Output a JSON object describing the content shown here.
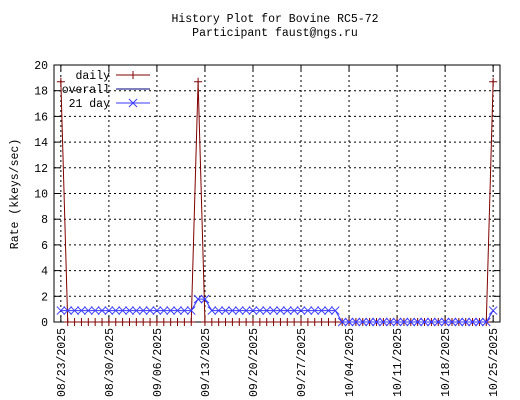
{
  "chart_data": {
    "type": "line",
    "title": "History Plot for Bovine RC5-72",
    "subtitle": "Participant faust@ngs.ru",
    "y_label": "Rate (kkeys/sec)",
    "x": [
      "08/23/2025",
      "08/24/2025",
      "08/25/2025",
      "08/26/2025",
      "08/27/2025",
      "08/28/2025",
      "08/29/2025",
      "08/30/2025",
      "08/31/2025",
      "09/01/2025",
      "09/02/2025",
      "09/03/2025",
      "09/04/2025",
      "09/05/2025",
      "09/06/2025",
      "09/07/2025",
      "09/08/2025",
      "09/09/2025",
      "09/10/2025",
      "09/11/2025",
      "09/12/2025",
      "09/13/2025",
      "09/14/2025",
      "09/15/2025",
      "09/16/2025",
      "09/17/2025",
      "09/18/2025",
      "09/19/2025",
      "09/20/2025",
      "09/21/2025",
      "09/22/2025",
      "09/23/2025",
      "09/24/2025",
      "09/25/2025",
      "09/26/2025",
      "09/27/2025",
      "09/28/2025",
      "09/29/2025",
      "09/30/2025",
      "10/01/2025",
      "10/02/2025",
      "10/03/2025",
      "10/04/2025",
      "10/05/2025",
      "10/06/2025",
      "10/07/2025",
      "10/08/2025",
      "10/09/2025",
      "10/10/2025",
      "10/11/2025",
      "10/12/2025",
      "10/13/2025",
      "10/14/2025",
      "10/15/2025",
      "10/16/2025",
      "10/17/2025",
      "10/18/2025",
      "10/19/2025",
      "10/20/2025",
      "10/21/2025",
      "10/22/2025",
      "10/23/2025",
      "10/24/2025",
      "10/25/2025"
    ],
    "series": [
      {
        "name": "daily",
        "color": "#800000",
        "marker": "plus",
        "values": [
          18.7,
          0,
          0,
          0,
          0,
          0,
          0,
          0,
          0,
          0,
          0,
          0,
          0,
          0,
          0,
          0,
          0,
          0,
          0,
          0,
          18.7,
          0,
          0,
          0,
          0,
          0,
          0,
          0,
          0,
          0,
          0,
          0,
          0,
          0,
          0,
          0,
          0,
          0,
          0,
          0,
          0,
          0,
          0,
          0,
          0,
          0,
          0,
          0,
          0,
          0,
          0,
          0,
          0,
          0,
          0,
          0,
          0,
          0,
          0,
          0,
          0,
          0,
          0,
          18.7
        ]
      },
      {
        "name": "overall",
        "color": "#00007f",
        "marker": "none",
        "values": [
          null,
          null,
          null,
          null,
          null,
          null,
          null,
          null,
          null,
          null,
          null,
          null,
          null,
          null,
          null,
          null,
          null,
          null,
          null,
          null,
          null,
          null,
          null,
          null,
          null,
          null,
          null,
          null,
          null,
          null,
          null,
          null,
          null,
          null,
          null,
          null,
          null,
          null,
          null,
          null,
          null,
          null,
          null,
          null,
          null,
          null,
          null,
          null,
          null,
          null,
          null,
          null,
          null,
          null,
          null,
          null,
          null,
          null,
          null,
          null,
          null,
          null,
          null,
          null
        ]
      },
      {
        "name": "21 day",
        "color": "#3a3aff",
        "marker": "cross",
        "values": [
          0.89,
          0.89,
          0.89,
          0.89,
          0.89,
          0.89,
          0.89,
          0.89,
          0.89,
          0.89,
          0.89,
          0.89,
          0.89,
          0.89,
          0.89,
          0.89,
          0.89,
          0.89,
          0.89,
          0.89,
          1.78,
          1.78,
          0.89,
          0.89,
          0.89,
          0.89,
          0.89,
          0.89,
          0.89,
          0.89,
          0.89,
          0.89,
          0.89,
          0.89,
          0.89,
          0.89,
          0.89,
          0.89,
          0.89,
          0.89,
          0.89,
          0,
          0,
          0,
          0,
          0,
          0,
          0,
          0,
          0,
          0,
          0,
          0,
          0,
          0,
          0,
          0,
          0,
          0,
          0,
          0,
          0,
          0,
          0.89
        ]
      }
    ],
    "xlim": [
      "08/22/2025",
      "10/26/2025"
    ],
    "xticks": [
      "08/23/2025",
      "08/30/2025",
      "09/06/2025",
      "09/13/2025",
      "09/20/2025",
      "09/27/2025",
      "10/04/2025",
      "10/11/2025",
      "10/18/2025",
      "10/25/2025"
    ],
    "ylim": [
      0,
      20
    ],
    "yticks": [
      0,
      2,
      4,
      6,
      8,
      10,
      12,
      14,
      16,
      18,
      20
    ],
    "grid": true,
    "legend": "top-left"
  }
}
